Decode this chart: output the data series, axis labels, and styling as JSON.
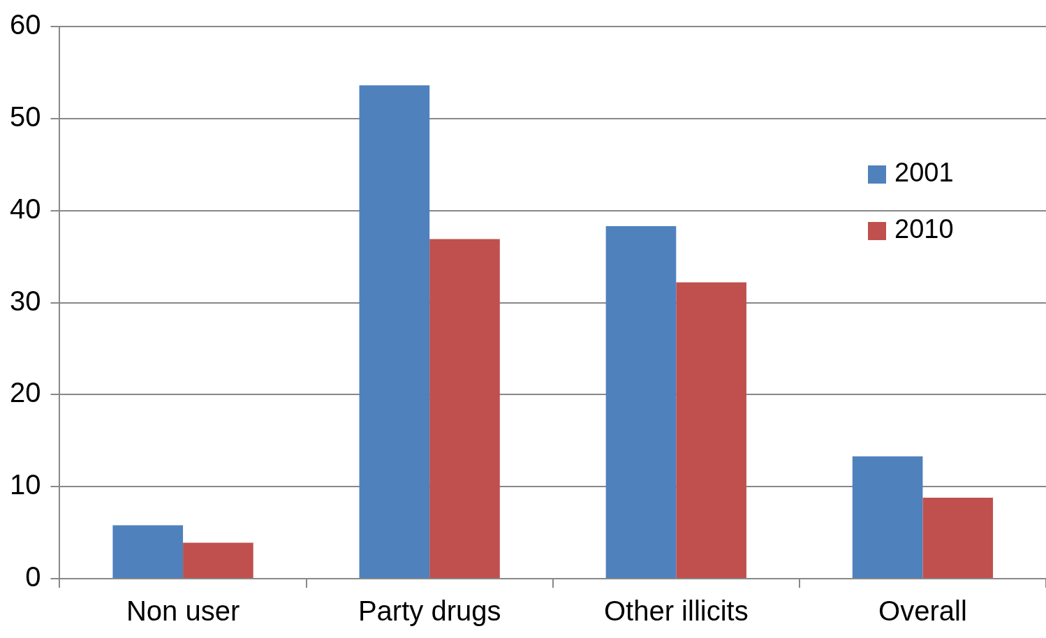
{
  "chart_data": {
    "type": "bar",
    "categories": [
      "Non user",
      "Party drugs",
      "Other illicits",
      "Overall"
    ],
    "series": [
      {
        "name": "2001",
        "color": "#4f81bd",
        "values": [
          5.8,
          53.6,
          38.3,
          13.3
        ]
      },
      {
        "name": "2010",
        "color": "#c0504d",
        "values": [
          3.9,
          36.9,
          32.2,
          8.8
        ]
      }
    ],
    "ylim": [
      0,
      60
    ],
    "yticks": [
      0,
      10,
      20,
      30,
      40,
      50,
      60
    ],
    "grid": "y",
    "legend": "right"
  }
}
